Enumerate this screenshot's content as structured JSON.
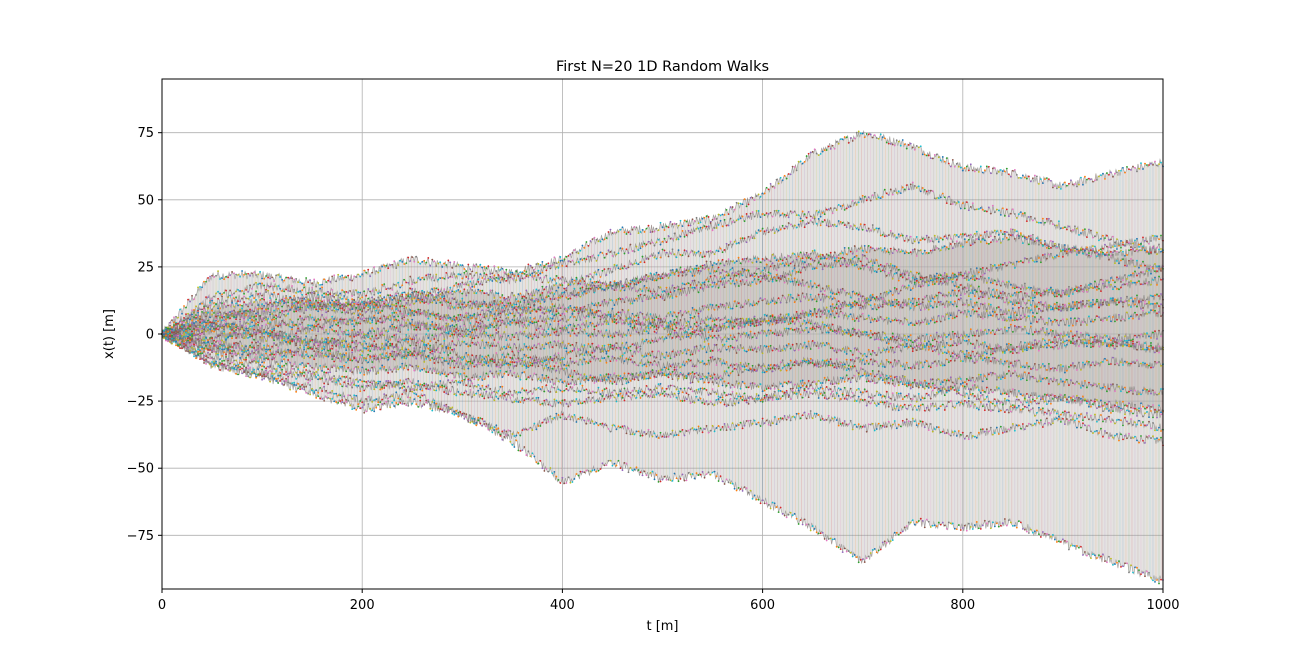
{
  "chart_data": {
    "type": "line",
    "title": "First N=20 1D Random Walks",
    "xlabel": "t [m]",
    "ylabel": "x(t) [m]",
    "xlim": [
      0,
      1000
    ],
    "ylim": [
      -95,
      95
    ],
    "x_ticks": [
      0,
      200,
      400,
      600,
      800,
      1000
    ],
    "x_tick_labels": [
      "0",
      "200",
      "400",
      "600",
      "800",
      "1000"
    ],
    "y_ticks": [
      75,
      50,
      25,
      0,
      -25,
      -50,
      -75
    ],
    "y_tick_labels": [
      "75",
      "50",
      "25",
      "0",
      "−25",
      "−50",
      "−75"
    ],
    "grid": true,
    "legend": null,
    "marker": "dot",
    "series_count": 20,
    "step_size": 1,
    "n_steps": 1000,
    "series_colors": [
      "#1f77b4",
      "#ff7f0e",
      "#2ca02c",
      "#d62728",
      "#9467bd",
      "#8c564b",
      "#e377c2",
      "#7f7f7f",
      "#bcbd22",
      "#17becf"
    ],
    "band_color": "#d9d6d4",
    "series": [
      {
        "x": [
          0,
          50,
          100,
          150,
          200,
          250,
          300,
          350,
          400,
          450,
          500,
          550,
          600,
          650,
          700,
          750,
          800,
          850,
          900,
          950,
          1000
        ],
        "values": [
          0,
          22,
          22,
          19,
          22,
          28,
          25,
          23,
          28,
          38,
          40,
          43,
          52,
          67,
          75,
          70,
          62,
          60,
          55,
          60,
          64
        ]
      },
      {
        "x": [
          0,
          50,
          100,
          150,
          200,
          250,
          300,
          350,
          400,
          450,
          500,
          550,
          600,
          650,
          700,
          750,
          800,
          850,
          900,
          950,
          1000
        ],
        "values": [
          0,
          14,
          18,
          16,
          15,
          20,
          22,
          20,
          26,
          30,
          35,
          40,
          45,
          44,
          50,
          55,
          48,
          45,
          40,
          35,
          30
        ]
      },
      {
        "x": [
          0,
          50,
          100,
          150,
          200,
          250,
          300,
          350,
          400,
          450,
          500,
          550,
          600,
          650,
          700,
          750,
          800,
          850,
          900,
          950,
          1000
        ],
        "values": [
          0,
          10,
          12,
          10,
          8,
          12,
          16,
          14,
          18,
          24,
          30,
          30,
          38,
          42,
          40,
          35,
          36,
          38,
          32,
          28,
          24
        ]
      },
      {
        "x": [
          0,
          50,
          100,
          150,
          200,
          250,
          300,
          350,
          400,
          450,
          500,
          550,
          600,
          650,
          700,
          750,
          800,
          850,
          900,
          950,
          1000
        ],
        "values": [
          0,
          6,
          8,
          12,
          10,
          14,
          10,
          12,
          15,
          18,
          22,
          26,
          28,
          30,
          25,
          20,
          22,
          26,
          30,
          33,
          36
        ]
      },
      {
        "x": [
          0,
          50,
          100,
          150,
          200,
          250,
          300,
          350,
          400,
          450,
          500,
          550,
          600,
          650,
          700,
          750,
          800,
          850,
          900,
          950,
          1000
        ],
        "values": [
          0,
          4,
          2,
          6,
          4,
          8,
          6,
          10,
          8,
          12,
          14,
          18,
          20,
          25,
          28,
          22,
          18,
          14,
          16,
          18,
          20
        ]
      },
      {
        "x": [
          0,
          50,
          100,
          150,
          200,
          250,
          300,
          350,
          400,
          450,
          500,
          550,
          600,
          650,
          700,
          750,
          800,
          850,
          900,
          950,
          1000
        ],
        "values": [
          0,
          2,
          5,
          3,
          6,
          4,
          2,
          5,
          6,
          8,
          6,
          10,
          12,
          14,
          10,
          12,
          16,
          12,
          10,
          12,
          14
        ]
      },
      {
        "x": [
          0,
          50,
          100,
          150,
          200,
          250,
          300,
          350,
          400,
          450,
          500,
          550,
          600,
          650,
          700,
          750,
          800,
          850,
          900,
          950,
          1000
        ],
        "values": [
          0,
          1,
          -2,
          2,
          0,
          3,
          1,
          4,
          2,
          5,
          3,
          6,
          4,
          8,
          6,
          4,
          8,
          6,
          4,
          6,
          8
        ]
      },
      {
        "x": [
          0,
          50,
          100,
          150,
          200,
          250,
          300,
          350,
          400,
          450,
          500,
          550,
          600,
          650,
          700,
          750,
          800,
          850,
          900,
          950,
          1000
        ],
        "values": [
          0,
          -2,
          1,
          -3,
          -1,
          -2,
          0,
          -1,
          1,
          0,
          2,
          -2,
          0,
          2,
          0,
          -2,
          0,
          2,
          0,
          -2,
          0
        ]
      },
      {
        "x": [
          0,
          50,
          100,
          150,
          200,
          250,
          300,
          350,
          400,
          450,
          500,
          550,
          600,
          650,
          700,
          750,
          800,
          850,
          900,
          950,
          1000
        ],
        "values": [
          0,
          -3,
          -5,
          -2,
          -4,
          -6,
          -3,
          -5,
          -4,
          -6,
          -8,
          -5,
          -6,
          -4,
          -7,
          -5,
          -3,
          -6,
          -4,
          -3,
          -5
        ]
      },
      {
        "x": [
          0,
          50,
          100,
          150,
          200,
          250,
          300,
          350,
          400,
          450,
          500,
          550,
          600,
          650,
          700,
          750,
          800,
          850,
          900,
          950,
          1000
        ],
        "values": [
          0,
          -5,
          -8,
          -6,
          -9,
          -7,
          -10,
          -8,
          -11,
          -9,
          -12,
          -10,
          -13,
          -11,
          -10,
          -12,
          -9,
          -11,
          -13,
          -10,
          -12
        ]
      },
      {
        "x": [
          0,
          50,
          100,
          150,
          200,
          250,
          300,
          350,
          400,
          450,
          500,
          550,
          600,
          650,
          700,
          750,
          800,
          850,
          900,
          950,
          1000
        ],
        "values": [
          0,
          -6,
          -10,
          -12,
          -14,
          -12,
          -16,
          -15,
          -18,
          -16,
          -15,
          -18,
          -20,
          -18,
          -16,
          -19,
          -17,
          -15,
          -18,
          -20,
          -22
        ]
      },
      {
        "x": [
          0,
          50,
          100,
          150,
          200,
          250,
          300,
          350,
          400,
          450,
          500,
          550,
          600,
          650,
          700,
          750,
          800,
          850,
          900,
          950,
          1000
        ],
        "values": [
          0,
          -8,
          -12,
          -15,
          -18,
          -20,
          -18,
          -22,
          -20,
          -22,
          -20,
          -22,
          -24,
          -20,
          -22,
          -24,
          -20,
          -22,
          -24,
          -26,
          -28
        ]
      },
      {
        "x": [
          0,
          50,
          100,
          150,
          200,
          250,
          300,
          350,
          400,
          450,
          500,
          550,
          600,
          650,
          700,
          750,
          800,
          850,
          900,
          950,
          1000
        ],
        "values": [
          0,
          -10,
          -14,
          -16,
          -20,
          -18,
          -22,
          -24,
          -26,
          -24,
          -22,
          -26,
          -24,
          -22,
          -25,
          -28,
          -26,
          -28,
          -30,
          -32,
          -35
        ]
      },
      {
        "x": [
          0,
          50,
          100,
          150,
          200,
          250,
          300,
          350,
          400,
          450,
          500,
          550,
          600,
          650,
          700,
          750,
          800,
          850,
          900,
          950,
          1000
        ],
        "values": [
          0,
          -11,
          -15,
          -20,
          -25,
          -22,
          -30,
          -38,
          -30,
          -35,
          -38,
          -35,
          -33,
          -30,
          -35,
          -33,
          -38,
          -35,
          -32,
          -38,
          -40
        ]
      },
      {
        "x": [
          0,
          50,
          100,
          150,
          200,
          250,
          300,
          350,
          400,
          450,
          500,
          550,
          600,
          650,
          700,
          750,
          800,
          850,
          900,
          950,
          1000
        ],
        "values": [
          0,
          -12,
          -16,
          -22,
          -28,
          -25,
          -30,
          -40,
          -55,
          -48,
          -54,
          -52,
          -62,
          -72,
          -85,
          -70,
          -72,
          -70,
          -78,
          -85,
          -92
        ]
      },
      {
        "x": [
          0,
          50,
          100,
          150,
          200,
          250,
          300,
          350,
          400,
          450,
          500,
          550,
          600,
          650,
          700,
          750,
          800,
          850,
          900,
          950,
          1000
        ],
        "values": [
          0,
          12,
          15,
          12,
          10,
          14,
          18,
          22,
          20,
          18,
          22,
          24,
          22,
          18,
          14,
          10,
          12,
          8,
          10,
          12,
          10
        ]
      },
      {
        "x": [
          0,
          50,
          100,
          150,
          200,
          250,
          300,
          350,
          400,
          450,
          500,
          550,
          600,
          650,
          700,
          750,
          800,
          850,
          900,
          950,
          1000
        ],
        "values": [
          0,
          8,
          6,
          10,
          12,
          8,
          5,
          8,
          10,
          6,
          4,
          2,
          5,
          8,
          12,
          18,
          22,
          18,
          15,
          20,
          24
        ]
      },
      {
        "x": [
          0,
          50,
          100,
          150,
          200,
          250,
          300,
          350,
          400,
          450,
          500,
          550,
          600,
          650,
          700,
          750,
          800,
          850,
          900,
          950,
          1000
        ],
        "values": [
          0,
          -4,
          -6,
          -8,
          -10,
          -8,
          -12,
          -10,
          -14,
          -18,
          -14,
          -16,
          -12,
          -10,
          -14,
          -18,
          -22,
          -26,
          -24,
          -28,
          -30
        ]
      },
      {
        "x": [
          0,
          50,
          100,
          150,
          200,
          250,
          300,
          350,
          400,
          450,
          500,
          550,
          600,
          650,
          700,
          750,
          800,
          850,
          900,
          950,
          1000
        ],
        "values": [
          0,
          3,
          0,
          -4,
          -6,
          -3,
          -8,
          -12,
          -8,
          -5,
          -2,
          2,
          6,
          4,
          0,
          -4,
          -8,
          -5,
          -2,
          -4,
          -6
        ]
      },
      {
        "x": [
          0,
          50,
          100,
          150,
          200,
          250,
          300,
          350,
          400,
          450,
          500,
          550,
          600,
          650,
          700,
          750,
          800,
          850,
          900,
          950,
          1000
        ],
        "values": [
          0,
          5,
          10,
          14,
          12,
          16,
          12,
          10,
          14,
          18,
          16,
          20,
          24,
          28,
          32,
          30,
          34,
          36,
          32,
          30,
          32
        ]
      }
    ]
  }
}
